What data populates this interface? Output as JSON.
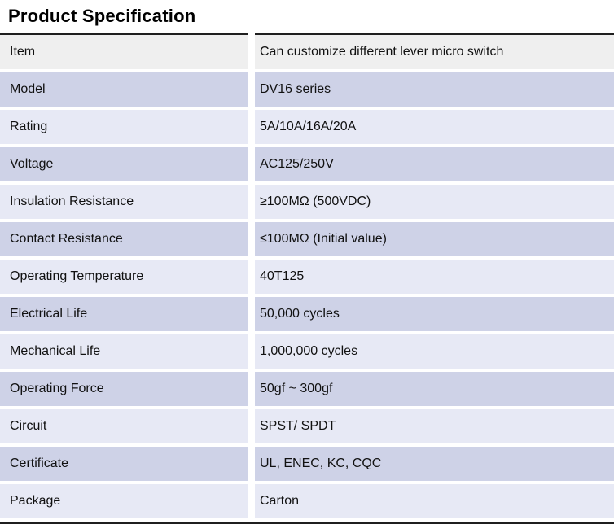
{
  "page": {
    "title": "Product Specification"
  },
  "theme": {
    "header_row_bg": "#efefef",
    "row_dark_bg": "#ced2e7",
    "row_light_bg": "#e7e9f5",
    "border_color": "#1f1f1f",
    "text_color": "#111111"
  },
  "spec_table": {
    "rows": [
      {
        "label": "Item",
        "value": "Can customize different lever micro switch"
      },
      {
        "label": "Model",
        "value": "DV16 series"
      },
      {
        "label": "Rating",
        "value": "5A/10A/16A/20A"
      },
      {
        "label": "Voltage",
        "value": "AC125/250V"
      },
      {
        "label": "Insulation Resistance",
        "value": "≥100MΩ (500VDC)"
      },
      {
        "label": "Contact Resistance",
        "value": "≤100MΩ (Initial value)"
      },
      {
        "label": "Operating Temperature",
        "value": "40T125"
      },
      {
        "label": "Electrical Life",
        "value": "50,000 cycles"
      },
      {
        "label": "Mechanical Life",
        "value": "1,000,000 cycles"
      },
      {
        "label": "Operating Force",
        "value": "50gf ~ 300gf"
      },
      {
        "label": "Circuit",
        "value": "SPST/ SPDT"
      },
      {
        "label": "Certificate",
        "value": "UL, ENEC, KC, CQC"
      },
      {
        "label": "Package",
        "value": "Carton"
      }
    ]
  }
}
